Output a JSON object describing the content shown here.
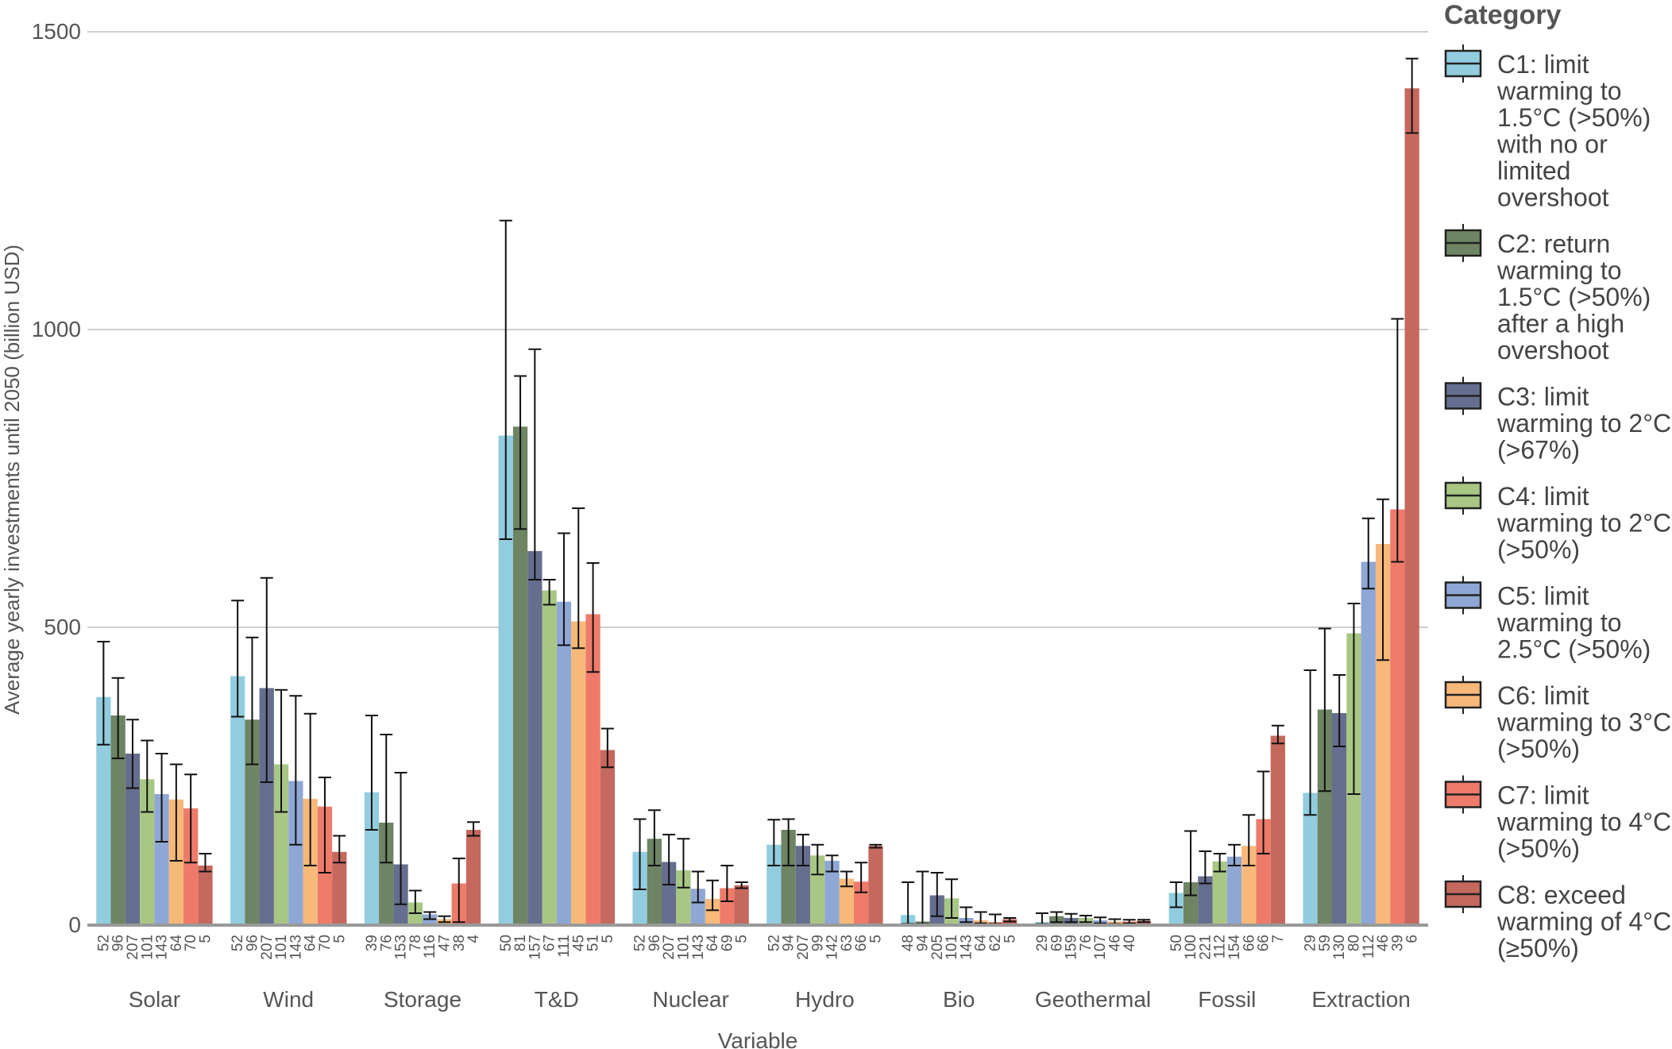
{
  "chart_data": {
    "type": "bar",
    "xlabel": "Variable",
    "ylabel": "Average yearly investments until 2050 (billion USD)",
    "ylim": [
      0,
      1500
    ],
    "yticks": [
      0,
      500,
      1000,
      1500
    ],
    "grid": true,
    "legend": {
      "title": "Category",
      "placement": "right",
      "entries": [
        {
          "id": "C1",
          "lines": [
            "C1: limit",
            "warming to",
            "1.5°C (>50%)",
            "with no or",
            "limited",
            "overshoot"
          ],
          "color": "#92cddf"
        },
        {
          "id": "C2",
          "lines": [
            "C2: return",
            "warming to",
            "1.5°C (>50%)",
            "after a high",
            "overshoot"
          ],
          "color": "#6e8463"
        },
        {
          "id": "C3",
          "lines": [
            "C3: limit",
            "warming to 2°C",
            "(>67%)"
          ],
          "color": "#666e8f"
        },
        {
          "id": "C4",
          "lines": [
            "C4: limit",
            "warming to 2°C",
            "(>50%)"
          ],
          "color": "#a9c784"
        },
        {
          "id": "C5",
          "lines": [
            "C5: limit",
            "warming to",
            "2.5°C (>50%)"
          ],
          "color": "#8fa7d4"
        },
        {
          "id": "C6",
          "lines": [
            "C6: limit",
            "warming to 3°C",
            "(>50%)"
          ],
          "color": "#f7b97a"
        },
        {
          "id": "C7",
          "lines": [
            "C7: limit",
            "warming to 4°C",
            "(>50%)"
          ],
          "color": "#ee7b6a"
        },
        {
          "id": "C8",
          "lines": [
            "C8: exceed",
            "warming of 4°C",
            "(≥50%)"
          ],
          "color": "#c5695e"
        }
      ]
    },
    "categories": [
      "Solar",
      "Wind",
      "Storage",
      "T&D",
      "Nuclear",
      "Hydro",
      "Bio",
      "Geothermal",
      "Fossil",
      "Extraction"
    ],
    "series": [
      {
        "name": "C1",
        "values": [
          383,
          418,
          223,
          822,
          123,
          135,
          17,
          5,
          54,
          222
        ],
        "err_low": [
          303,
          350,
          160,
          648,
          60,
          100,
          2,
          2,
          30,
          185
        ],
        "err_high": [
          476,
          545,
          352,
          1183,
          178,
          177,
          72,
          20,
          72,
          428
        ],
        "counts": [
          52,
          52,
          39,
          50,
          52,
          52,
          48,
          29,
          50,
          29
        ]
      },
      {
        "name": "C2",
        "values": [
          352,
          345,
          172,
          837,
          145,
          160,
          6,
          15,
          72,
          362
        ],
        "err_low": [
          280,
          270,
          105,
          665,
          100,
          100,
          2,
          5,
          50,
          225
        ],
        "err_high": [
          415,
          483,
          320,
          922,
          193,
          178,
          90,
          22,
          158,
          498
        ],
        "counts": [
          96,
          96,
          76,
          81,
          96,
          94,
          94,
          69,
          100,
          59
        ]
      },
      {
        "name": "C3",
        "values": [
          288,
          398,
          102,
          628,
          106,
          133,
          50,
          12,
          82,
          356
        ],
        "err_low": [
          230,
          240,
          35,
          580,
          68,
          100,
          15,
          5,
          70,
          300
        ],
        "err_high": [
          345,
          583,
          256,
          967,
          152,
          152,
          88,
          19,
          124,
          420
        ],
        "counts": [
          207,
          207,
          153,
          157,
          207,
          207,
          205,
          159,
          221,
          130
        ]
      },
      {
        "name": "C4",
        "values": [
          245,
          270,
          38,
          562,
          92,
          117,
          45,
          12,
          107,
          490
        ],
        "err_low": [
          190,
          190,
          20,
          538,
          63,
          85,
          12,
          5,
          90,
          220
        ],
        "err_high": [
          310,
          395,
          58,
          580,
          145,
          135,
          77,
          16,
          120,
          540
        ],
        "counts": [
          101,
          101,
          78,
          67,
          101,
          99,
          101,
          76,
          112,
          80
        ]
      },
      {
        "name": "C5",
        "values": [
          220,
          242,
          18,
          543,
          61,
          108,
          12,
          8,
          115,
          610
        ],
        "err_low": [
          140,
          135,
          10,
          470,
          38,
          90,
          5,
          3,
          100,
          565
        ],
        "err_high": [
          288,
          385,
          22,
          658,
          90,
          117,
          30,
          13,
          135,
          683
        ],
        "counts": [
          143,
          143,
          116,
          111,
          143,
          142,
          143,
          107,
          154,
          112
        ]
      },
      {
        "name": "C6",
        "values": [
          211,
          212,
          10,
          510,
          44,
          78,
          8,
          6,
          133,
          640
        ],
        "err_low": [
          108,
          100,
          5,
          465,
          25,
          65,
          3,
          2,
          100,
          445
        ],
        "err_high": [
          270,
          355,
          15,
          700,
          75,
          90,
          22,
          10,
          185,
          715
        ],
        "counts": [
          64,
          64,
          47,
          45,
          64,
          63,
          64,
          46,
          66,
          46
        ]
      },
      {
        "name": "C7",
        "values": [
          196,
          199,
          70,
          522,
          62,
          73,
          5,
          6,
          178,
          698
        ],
        "err_low": [
          105,
          88,
          5,
          425,
          40,
          55,
          2,
          3,
          120,
          610
        ],
        "err_high": [
          253,
          248,
          112,
          608,
          100,
          105,
          18,
          9,
          258,
          1018
        ],
        "counts": [
          70,
          70,
          38,
          51,
          69,
          66,
          62,
          40,
          66,
          39
        ]
      },
      {
        "name": "C8",
        "values": [
          100,
          123,
          160,
          294,
          67,
          133,
          10,
          7,
          318,
          1405
        ],
        "err_low": [
          90,
          105,
          150,
          265,
          62,
          130,
          6,
          5,
          305,
          1330
        ],
        "err_high": [
          120,
          150,
          173,
          330,
          72,
          135,
          12,
          9,
          335,
          1455
        ],
        "counts": [
          5,
          5,
          4,
          5,
          5,
          5,
          5,
          null,
          7,
          6
        ]
      }
    ]
  }
}
